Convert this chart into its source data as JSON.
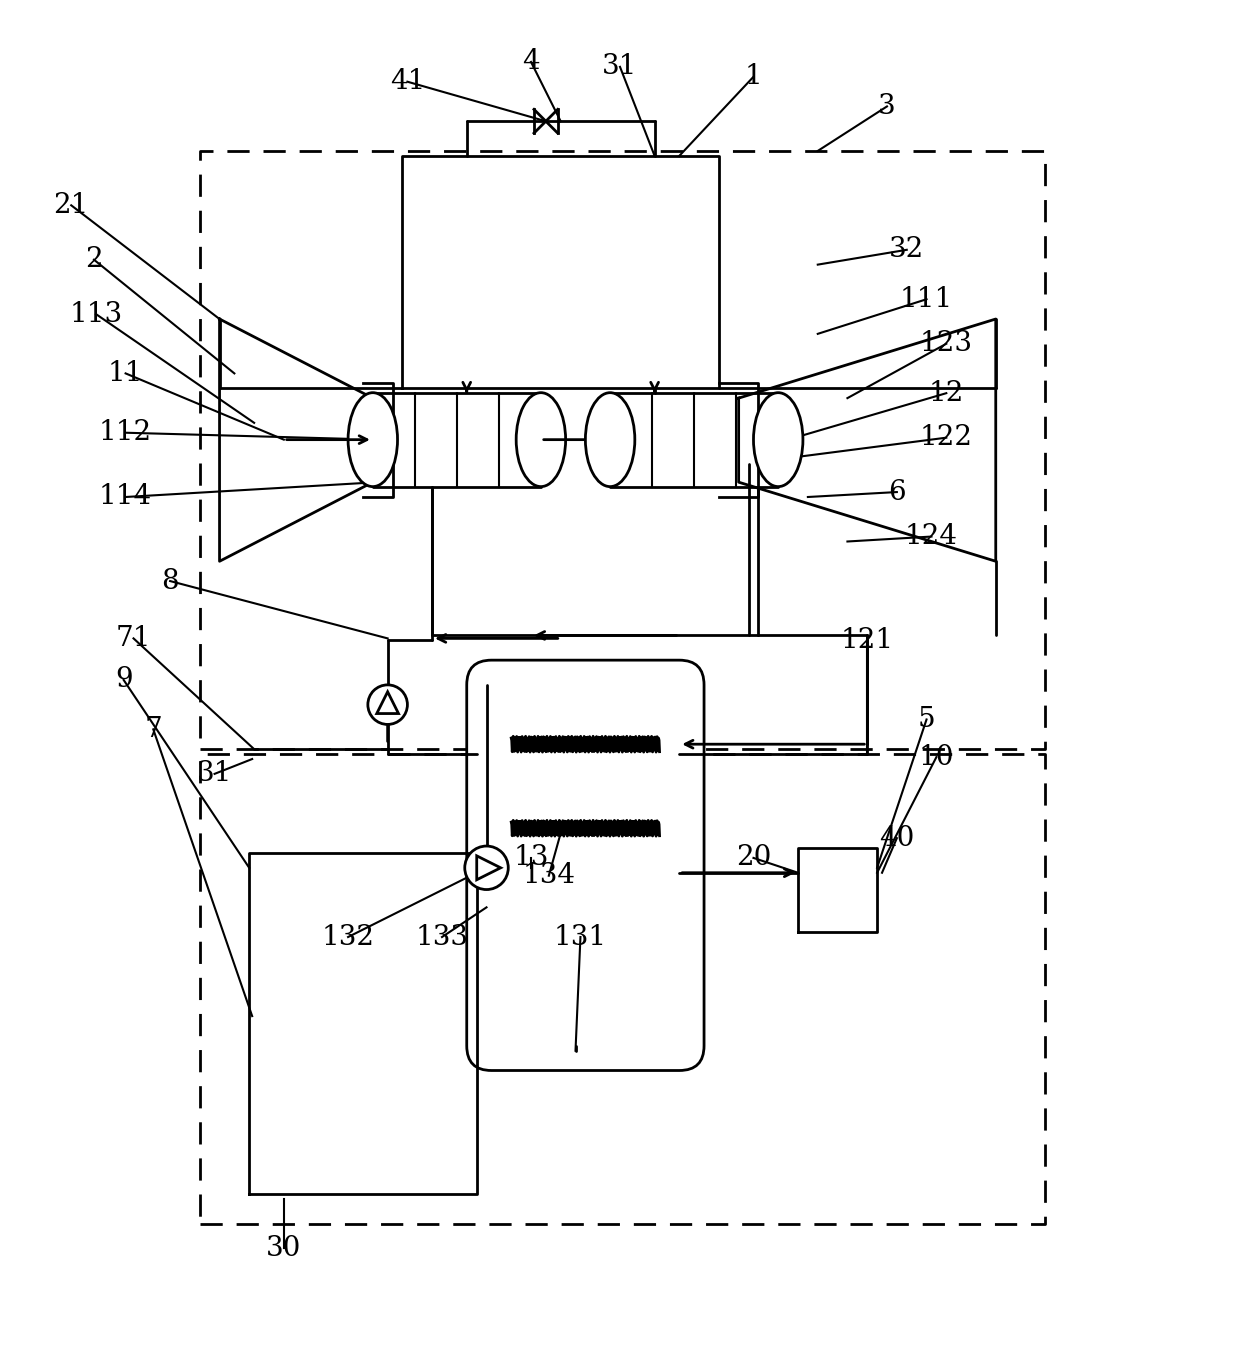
{
  "fig_width": 12.4,
  "fig_height": 13.47,
  "dpi": 100,
  "line_color": "#000000",
  "line_width": 2.0,
  "bg_color": "#ffffff"
}
